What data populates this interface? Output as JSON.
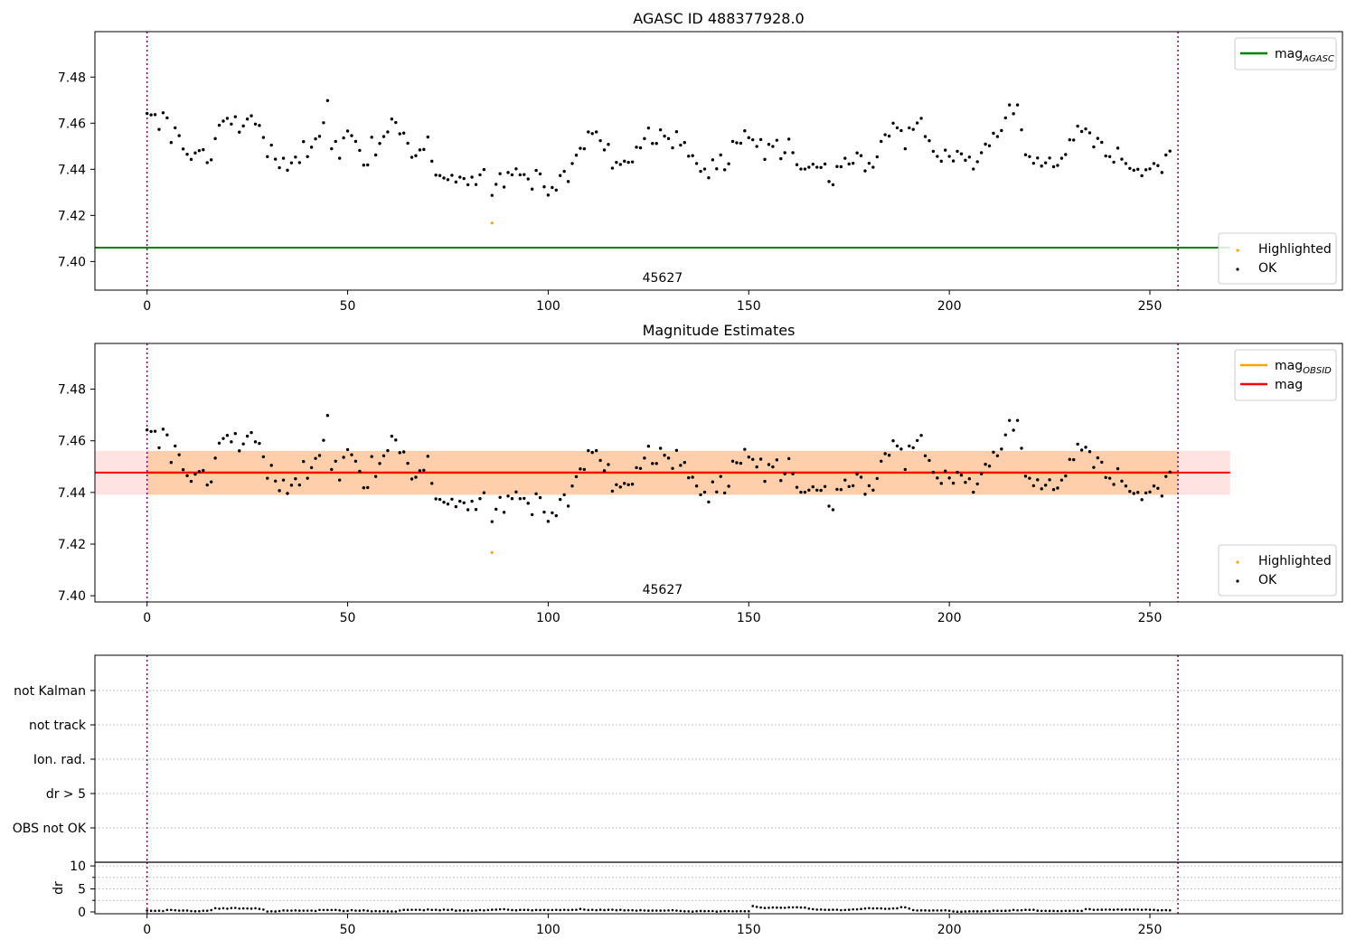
{
  "chart_data": [
    {
      "type": "scatter",
      "title": "AGASC ID 488377928.0",
      "xlabel": "",
      "ylabel": "",
      "xlim": [
        -13,
        298
      ],
      "ylim": [
        7.3876,
        7.4997
      ],
      "xticks": [
        0,
        50,
        100,
        150,
        200,
        250
      ],
      "yticks": [
        7.4,
        7.42,
        7.44,
        7.46,
        7.48
      ],
      "ytick_labels": [
        "7.40",
        "7.42",
        "7.44",
        "7.46",
        "7.48"
      ],
      "obsid_label": {
        "text": "45627",
        "x": 128.5
      },
      "vlines": [
        0,
        257
      ],
      "hlines": [
        {
          "name": "mag_AGASC",
          "y": 7.406,
          "x_end": 270,
          "color": "#008000"
        }
      ],
      "legends": [
        {
          "position": "upper-right",
          "entries": [
            {
              "label": "mag",
              "sub": "AGASC",
              "marker": "line",
              "color": "#008000"
            }
          ]
        },
        {
          "position": "lower-right",
          "entries": [
            {
              "label": "Highlighted",
              "marker": "dot",
              "color": "#ffa500"
            },
            {
              "label": "OK",
              "marker": "dot",
              "color": "#000000"
            }
          ]
        }
      ],
      "series": [
        {
          "name": "OK",
          "color": "#000000",
          "x_start": 0,
          "x_step": 1,
          "y": [
            7.4642,
            7.4636,
            7.4637,
            7.4573,
            7.4645,
            7.4623,
            7.4516,
            7.458,
            7.4546,
            7.4488,
            7.4465,
            7.4443,
            7.4471,
            7.4481,
            7.4485,
            7.4429,
            7.4441,
            7.4533,
            7.4591,
            7.4609,
            7.4621,
            7.4596,
            7.4628,
            7.4561,
            7.4588,
            7.4618,
            7.4632,
            7.4596,
            7.459,
            7.4538,
            7.4455,
            7.4505,
            7.4444,
            7.4407,
            7.4448,
            7.4396,
            7.4428,
            7.4453,
            7.4429,
            7.452,
            7.4455,
            7.4496,
            7.4532,
            7.4543,
            7.4602,
            7.4698,
            7.4489,
            7.4521,
            7.4448,
            7.4536,
            7.4566,
            7.4546,
            7.4521,
            7.4482,
            7.4418,
            7.4419,
            7.4539,
            7.4462,
            7.4512,
            7.4542,
            7.4562,
            7.4618,
            7.4603,
            7.4554,
            7.4557,
            7.4513,
            7.4452,
            7.4459,
            7.4484,
            7.4486,
            7.454,
            7.4435,
            7.4375,
            7.4373,
            7.4362,
            7.4355,
            7.4374,
            7.4345,
            7.4366,
            7.436,
            7.4333,
            7.4366,
            7.4334,
            7.4376,
            7.4399,
            null,
            7.4287,
            7.4335,
            7.4381,
            7.4323,
            7.4386,
            7.4376,
            7.4402,
            7.4376,
            7.4377,
            7.4358,
            7.4314,
            7.4395,
            7.438,
            7.4324,
            7.4288,
            7.4321,
            7.431,
            7.4373,
            7.4391,
            7.4347,
            7.4425,
            7.4461,
            7.4491,
            7.4489,
            7.4562,
            7.4555,
            7.4562,
            7.4524,
            7.4484,
            7.4508,
            7.4405,
            7.443,
            7.4421,
            7.4435,
            7.443,
            7.4432,
            7.4496,
            7.4493,
            7.4533,
            7.4579,
            7.4512,
            7.4512,
            7.4571,
            7.4544,
            7.4533,
            7.4493,
            7.4563,
            7.4505,
            7.4516,
            7.4457,
            7.4459,
            7.4425,
            7.4391,
            7.4401,
            7.4363,
            7.4441,
            7.4402,
            7.4462,
            7.4398,
            7.4424,
            7.4521,
            7.4515,
            7.4513,
            7.4567,
            7.4537,
            7.4528,
            7.4499,
            7.4529,
            7.4443,
            7.4508,
            7.4499,
            7.4526,
            7.4446,
            7.4472,
            7.4531,
            7.4472,
            7.442,
            7.4401,
            7.4401,
            7.4409,
            7.4422,
            7.4409,
            7.4408,
            7.4423,
            7.4347,
            7.4333,
            7.4412,
            7.4411,
            7.4448,
            7.4423,
            7.4426,
            7.4471,
            7.4459,
            7.4393,
            7.4426,
            7.4409,
            7.4454,
            7.4521,
            7.455,
            7.4544,
            7.46,
            7.458,
            7.4568,
            7.4489,
            7.458,
            7.4573,
            7.4601,
            7.4621,
            7.4542,
            7.4524,
            7.4478,
            7.4456,
            7.4435,
            7.4483,
            7.4456,
            7.4436,
            7.4478,
            7.4467,
            7.4439,
            7.4453,
            7.4401,
            7.4433,
            7.4472,
            7.4509,
            7.4502,
            7.4556,
            7.4542,
            7.4568,
            7.4623,
            7.4679,
            7.4641,
            7.4679,
            7.4571,
            7.4463,
            7.4455,
            7.4426,
            7.4449,
            7.4414,
            7.4428,
            7.4449,
            7.4411,
            7.4417,
            7.4448,
            7.4464,
            7.4528,
            7.4527,
            7.4587,
            7.4564,
            7.4575,
            7.4558,
            7.4497,
            7.4534,
            7.4517,
            7.4458,
            7.4455,
            7.4431,
            7.4492,
            7.4444,
            7.4425,
            7.4404,
            7.4396,
            7.44,
            7.4372,
            7.4398,
            7.4402,
            7.4425,
            7.4416,
            7.4386,
            7.4462,
            7.4479
          ]
        },
        {
          "name": "Highlighted",
          "color": "#ffa500",
          "x": [
            86
          ],
          "y": [
            7.4167
          ]
        }
      ]
    },
    {
      "type": "scatter",
      "title": "Magnitude Estimates",
      "xlabel": "",
      "ylabel": "",
      "xlim": [
        -13,
        298
      ],
      "ylim": [
        7.3976,
        7.4977
      ],
      "xticks": [
        0,
        50,
        100,
        150,
        200,
        250
      ],
      "yticks": [
        7.4,
        7.42,
        7.44,
        7.46,
        7.48
      ],
      "ytick_labels": [
        "7.40",
        "7.42",
        "7.44",
        "7.46",
        "7.48"
      ],
      "obsid_label": {
        "text": "45627",
        "x": 128.5
      },
      "vlines": [
        0,
        257
      ],
      "bands": [
        {
          "name": "mag_OBSID band",
          "y0": 7.4391,
          "y1": 7.4561,
          "x0": 0,
          "x1": 257,
          "color": "#ffa500",
          "opacity": 0.25
        },
        {
          "name": "mag band",
          "y0": 7.4391,
          "y1": 7.4561,
          "x0": -13,
          "x1": 270,
          "color": "#ff0000",
          "opacity": 0.11
        }
      ],
      "hlines": [
        {
          "name": "mag_OBSID",
          "y": 7.4477,
          "x_start": 0,
          "x_end": 257,
          "color": "#ffa500",
          "width": 3
        },
        {
          "name": "mag",
          "y": 7.4477,
          "x_start": -13,
          "x_end": 270,
          "color": "#ff0000",
          "width": 2
        }
      ],
      "legends": [
        {
          "position": "upper-right",
          "entries": [
            {
              "label": "mag",
              "sub": "OBSID",
              "marker": "line",
              "color": "#ffa500"
            },
            {
              "label": "mag",
              "marker": "line",
              "color": "#ff0000"
            }
          ]
        },
        {
          "position": "lower-right",
          "entries": [
            {
              "label": "Highlighted",
              "marker": "dot",
              "color": "#ffa500"
            },
            {
              "label": "OK",
              "marker": "dot",
              "color": "#000000"
            }
          ]
        }
      ],
      "series": [
        {
          "name": "OK",
          "color": "#000000",
          "same_as_panel": 0
        },
        {
          "name": "Highlighted",
          "color": "#ffa500",
          "x": [
            86
          ],
          "y": [
            7.4167
          ]
        }
      ]
    },
    {
      "type": "scatter",
      "title": "",
      "xlabel": "",
      "ylabel": "",
      "xlim": [
        -13,
        298
      ],
      "categories": [
        "OBS not OK",
        "dr > 5",
        "Ion. rad.",
        "not track",
        "not Kalman"
      ],
      "vlines": [
        0,
        257
      ],
      "grid": "dotted"
    },
    {
      "type": "scatter",
      "title": "",
      "xlabel": "",
      "ylabel": "dr",
      "xlim": [
        -13,
        298
      ],
      "ylim": [
        -0.4,
        10.8
      ],
      "xticks": [
        0,
        50,
        100,
        150,
        200,
        250
      ],
      "yticks": [
        0,
        5,
        10
      ],
      "ytick_labels": [
        "0",
        "5",
        "10"
      ],
      "vlines": [
        0,
        257
      ],
      "series": [
        {
          "name": "dr",
          "color": "#000000",
          "x_start": 0,
          "x_step": 1,
          "y": [
            0.3,
            0.25,
            0.22,
            0.26,
            0.19,
            0.42,
            0.43,
            0.35,
            0.28,
            0.3,
            0.3,
            0.18,
            0.15,
            0.16,
            0.26,
            0.26,
            0.39,
            0.82,
            0.7,
            0.8,
            0.7,
            0.84,
            0.87,
            0.72,
            0.76,
            0.75,
            0.71,
            0.8,
            0.65,
            0.5,
            0.09,
            0.13,
            0.1,
            0.19,
            0.32,
            0.28,
            0.29,
            0.32,
            0.27,
            0.28,
            0.28,
            0.29,
            0.21,
            0.43,
            0.4,
            0.4,
            0.4,
            0.43,
            0.34,
            0.2,
            0.24,
            0.38,
            0.29,
            0.27,
            0.34,
            0.26,
            0.14,
            0.19,
            0.14,
            0.2,
            0.11,
            0.11,
            0.09,
            0.31,
            0.44,
            0.44,
            0.46,
            0.46,
            0.46,
            0.37,
            0.52,
            0.43,
            0.46,
            0.37,
            0.5,
            0.43,
            0.49,
            0.27,
            0.33,
            0.3,
            0.33,
            0.29,
            0.32,
            0.41,
            0.33,
            0.41,
            0.47,
            0.49,
            0.56,
            0.58,
            0.48,
            0.39,
            0.34,
            0.44,
            0.44,
            0.43,
            0.34,
            0.42,
            0.4,
            0.43,
            0.41,
            0.41,
            0.45,
            0.4,
            0.46,
            0.41,
            0.45,
            0.46,
            0.64,
            0.5,
            0.4,
            0.46,
            0.38,
            0.47,
            0.39,
            0.44,
            0.48,
            0.37,
            0.45,
            0.33,
            0.36,
            0.36,
            0.28,
            0.37,
            0.31,
            0.27,
            0.3,
            0.28,
            0.28,
            0.28,
            0.31,
            0.37,
            0.29,
            0.21,
            0.14,
            0.13,
            0.07,
            0.15,
            0.2,
            0.17,
            0.18,
            0.19,
            0.07,
            0.13,
            0.17,
            0.18,
            0.13,
            0.14,
            0.16,
            0.15,
            0.15,
            1.28,
            1.09,
            0.96,
            0.86,
            0.9,
            0.96,
            0.93,
            0.91,
            0.89,
            0.98,
            0.99,
            1.01,
            0.96,
            0.93,
            0.71,
            0.6,
            0.5,
            0.51,
            0.46,
            0.45,
            0.48,
            0.48,
            0.38,
            0.43,
            0.47,
            0.56,
            0.55,
            0.64,
            0.74,
            0.82,
            0.76,
            0.78,
            0.76,
            0.68,
            0.69,
            0.75,
            0.79,
            1.03,
            0.98,
            0.74,
            0.39,
            0.31,
            0.32,
            0.32,
            0.28,
            0.32,
            0.31,
            0.31,
            0.34,
            0.26,
            0.11,
            0.05,
            0.05,
            0.1,
            0.13,
            0.13,
            0.12,
            0.12,
            0.16,
            0.15,
            0.28,
            0.25,
            0.23,
            0.25,
            0.28,
            0.42,
            0.33,
            0.35,
            0.44,
            0.44,
            0.45,
            0.27,
            0.23,
            0.24,
            0.22,
            0.22,
            0.19,
            0.2,
            0.24,
            0.22,
            0.29,
            0.22,
            0.22,
            0.6,
            0.59,
            0.45,
            0.48,
            0.47,
            0.51,
            0.5,
            0.47,
            0.53,
            0.47,
            0.5,
            0.49,
            0.5,
            0.5,
            0.45,
            0.51,
            0.48,
            0.45,
            0.35,
            0.37,
            0.39,
            0.34
          ]
        }
      ]
    }
  ]
}
